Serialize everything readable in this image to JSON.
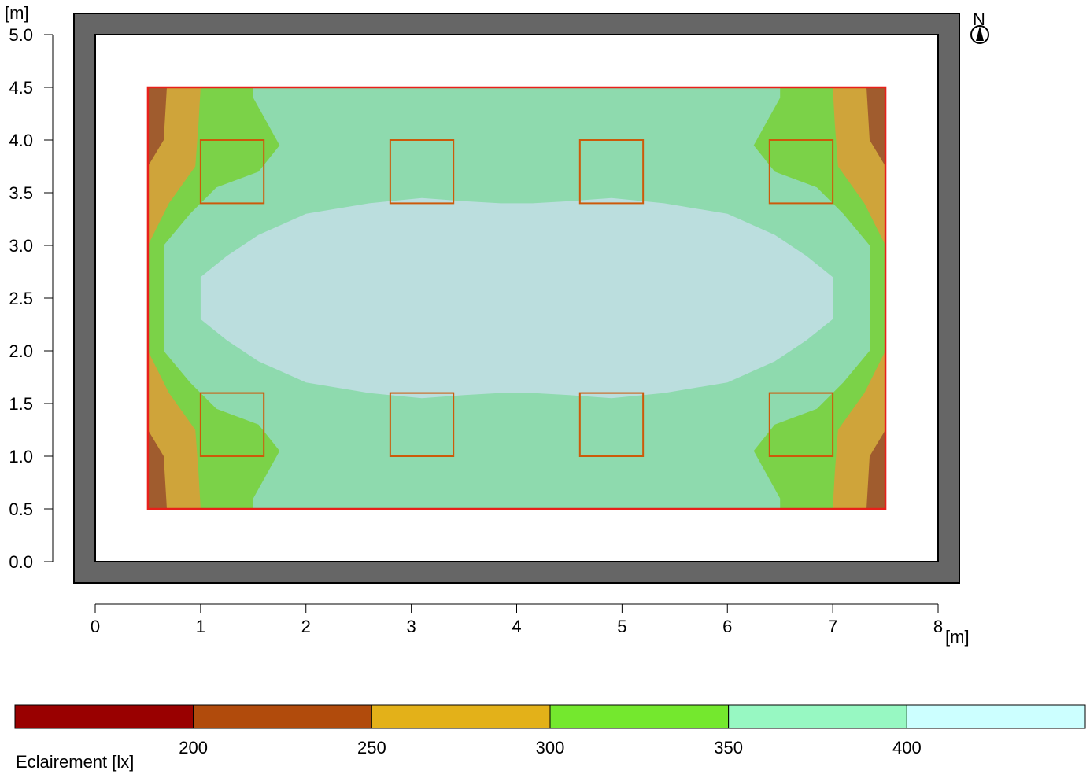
{
  "chart_data": {
    "type": "heatmap",
    "title": "",
    "y_unit": "[m]",
    "x_unit": "[m]",
    "xlim": [
      0,
      8
    ],
    "ylim": [
      0,
      5
    ],
    "x_ticks": [
      "0",
      "1",
      "2",
      "3",
      "4",
      "5",
      "6",
      "7",
      "8"
    ],
    "y_ticks": [
      "0.0",
      "0.5",
      "1.0",
      "1.5",
      "2.0",
      "2.5",
      "3.0",
      "3.5",
      "4.0",
      "4.5",
      "5.0"
    ],
    "room": {
      "x": [
        0,
        8
      ],
      "y": [
        0,
        5
      ]
    },
    "calculation_area": {
      "x": [
        0.5,
        7.5
      ],
      "y": [
        0.5,
        4.5
      ]
    },
    "luminaires": [
      {
        "x": 1.3,
        "y": 3.7
      },
      {
        "x": 3.1,
        "y": 3.7
      },
      {
        "x": 4.9,
        "y": 3.7
      },
      {
        "x": 6.7,
        "y": 3.7
      },
      {
        "x": 1.3,
        "y": 1.3
      },
      {
        "x": 3.1,
        "y": 1.3
      },
      {
        "x": 4.9,
        "y": 1.3
      },
      {
        "x": 6.7,
        "y": 1.3
      }
    ],
    "luminaire_size": 0.6,
    "compass_label": "N",
    "legend": {
      "title": "Eclairement [lx]",
      "thresholds": [
        "200",
        "250",
        "300",
        "350",
        "400"
      ],
      "colors": [
        "#990000",
        "#B14B0C",
        "#E3B119",
        "#74E82E",
        "#97F8C2",
        "#CCFFFF"
      ]
    },
    "contours": [
      {
        "level": 350,
        "color": "#BBDEDE",
        "points": [
          [
            1.0,
            2.3
          ],
          [
            1.25,
            2.1
          ],
          [
            1.55,
            1.9
          ],
          [
            2.0,
            1.7
          ],
          [
            2.6,
            1.6
          ],
          [
            3.1,
            1.55
          ],
          [
            3.5,
            1.58
          ],
          [
            3.85,
            1.6
          ],
          [
            4.15,
            1.6
          ],
          [
            4.5,
            1.58
          ],
          [
            4.9,
            1.55
          ],
          [
            5.4,
            1.6
          ],
          [
            6.0,
            1.7
          ],
          [
            6.45,
            1.9
          ],
          [
            6.75,
            2.1
          ],
          [
            7.0,
            2.3
          ],
          [
            7.0,
            2.7
          ],
          [
            6.75,
            2.9
          ],
          [
            6.45,
            3.1
          ],
          [
            6.0,
            3.3
          ],
          [
            5.4,
            3.4
          ],
          [
            4.9,
            3.45
          ],
          [
            4.5,
            3.42
          ],
          [
            4.15,
            3.4
          ],
          [
            3.85,
            3.4
          ],
          [
            3.5,
            3.42
          ],
          [
            3.1,
            3.45
          ],
          [
            2.6,
            3.4
          ],
          [
            2.0,
            3.3
          ],
          [
            1.55,
            3.1
          ],
          [
            1.25,
            2.9
          ],
          [
            1.0,
            2.7
          ]
        ]
      },
      {
        "level": 300,
        "color": "#8EDAAE",
        "points": [
          [
            0.65,
            2.0
          ],
          [
            0.9,
            1.7
          ],
          [
            1.15,
            1.45
          ],
          [
            1.55,
            1.3
          ],
          [
            1.75,
            1.05
          ],
          [
            1.5,
            0.6
          ],
          [
            1.5,
            0.5
          ],
          [
            6.5,
            0.5
          ],
          [
            6.5,
            0.6
          ],
          [
            6.25,
            1.05
          ],
          [
            6.45,
            1.3
          ],
          [
            6.85,
            1.45
          ],
          [
            7.1,
            1.7
          ],
          [
            7.35,
            2.0
          ],
          [
            7.35,
            3.0
          ],
          [
            7.1,
            3.3
          ],
          [
            6.85,
            3.55
          ],
          [
            6.45,
            3.7
          ],
          [
            6.25,
            3.95
          ],
          [
            6.5,
            4.4
          ],
          [
            6.5,
            4.5
          ],
          [
            1.5,
            4.5
          ],
          [
            1.5,
            4.4
          ],
          [
            1.75,
            3.95
          ],
          [
            1.55,
            3.7
          ],
          [
            1.15,
            3.55
          ],
          [
            0.9,
            3.3
          ],
          [
            0.65,
            3.0
          ]
        ]
      },
      {
        "level": 250,
        "color": "#7BD248",
        "points": [
          [
            0.5,
            2.0
          ],
          [
            0.7,
            1.6
          ],
          [
            0.95,
            1.25
          ],
          [
            0.98,
            0.85
          ],
          [
            1.0,
            0.5
          ],
          [
            7.0,
            0.5
          ],
          [
            7.02,
            0.85
          ],
          [
            7.05,
            1.25
          ],
          [
            7.3,
            1.6
          ],
          [
            7.5,
            2.0
          ],
          [
            7.5,
            3.0
          ],
          [
            7.3,
            3.4
          ],
          [
            7.05,
            3.75
          ],
          [
            7.02,
            4.15
          ],
          [
            7.0,
            4.5
          ],
          [
            1.0,
            4.5
          ],
          [
            0.98,
            4.15
          ],
          [
            0.95,
            3.75
          ],
          [
            0.7,
            3.4
          ],
          [
            0.5,
            3.0
          ]
        ]
      },
      {
        "level": 200,
        "color": "#CFA43A",
        "points": [
          [
            0.5,
            1.25
          ],
          [
            0.65,
            1.0
          ],
          [
            0.68,
            0.5
          ],
          [
            7.32,
            0.5
          ],
          [
            7.35,
            1.0
          ],
          [
            7.5,
            1.25
          ],
          [
            7.5,
            3.75
          ],
          [
            7.35,
            4.0
          ],
          [
            7.32,
            4.5
          ],
          [
            0.68,
            4.5
          ],
          [
            0.65,
            4.0
          ],
          [
            0.5,
            3.75
          ]
        ]
      },
      {
        "level": 0,
        "color": "#A05C2E",
        "points": [
          [
            0.5,
            0.5
          ],
          [
            7.5,
            0.5
          ],
          [
            7.5,
            4.5
          ],
          [
            0.5,
            4.5
          ]
        ]
      }
    ]
  }
}
